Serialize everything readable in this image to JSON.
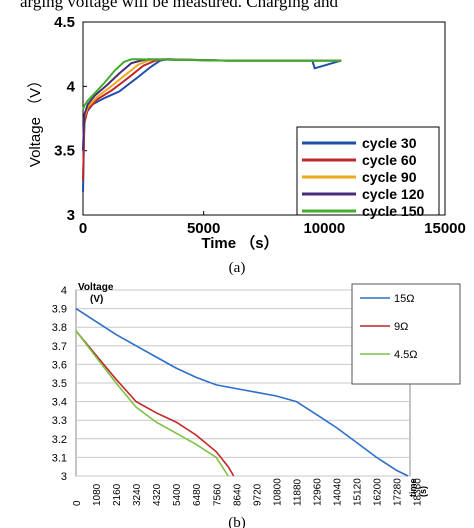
{
  "header_text": "arging voltage will be measured. Charging and",
  "chart_data": [
    {
      "type": "line",
      "caption": "(a)",
      "xlabel": "Time （s）",
      "ylabel": "Voltage （V）",
      "xlim": [
        0,
        15000
      ],
      "ylim": [
        3,
        4.5
      ],
      "x_ticks": [
        "0",
        "5000",
        "10000",
        "15000"
      ],
      "y_ticks": [
        "3",
        "3.5",
        "4",
        "4.5"
      ],
      "legend_position": "bottom-right",
      "series": [
        {
          "name": "cycle 30",
          "color": "#1f4fa8",
          "x": [
            0,
            50,
            150,
            400,
            900,
            1500,
            2200,
            2800,
            3200,
            3500,
            6000,
            9500,
            9600,
            10700
          ],
          "y": [
            3.18,
            3.7,
            3.8,
            3.86,
            3.91,
            3.96,
            4.06,
            4.15,
            4.2,
            4.21,
            4.2,
            4.2,
            4.14,
            4.2
          ]
        },
        {
          "name": "cycle 60",
          "color": "#c0272d",
          "x": [
            0,
            60,
            200,
            600,
            1200,
            1900,
            2500,
            3000,
            3300,
            6000,
            10700
          ],
          "y": [
            3.27,
            3.72,
            3.82,
            3.9,
            3.97,
            4.07,
            4.16,
            4.2,
            4.21,
            4.2,
            4.2
          ]
        },
        {
          "name": "cycle 90",
          "color": "#f0a818",
          "x": [
            0,
            60,
            200,
            600,
            1100,
            1700,
            2300,
            2700,
            3000,
            6000,
            10700
          ],
          "y": [
            3.5,
            3.76,
            3.84,
            3.92,
            3.99,
            4.08,
            4.17,
            4.2,
            4.21,
            4.2,
            4.2
          ]
        },
        {
          "name": "cycle 120",
          "color": "#4b2a7a",
          "x": [
            0,
            60,
            200,
            500,
            1000,
            1500,
            2000,
            2400,
            2700,
            6000,
            10700
          ],
          "y": [
            3.5,
            3.78,
            3.86,
            3.93,
            4.01,
            4.1,
            4.18,
            4.2,
            4.21,
            4.2,
            4.2
          ]
        },
        {
          "name": "cycle 150",
          "color": "#3fae2a",
          "x": [
            0,
            60,
            200,
            500,
            900,
            1300,
            1700,
            2000,
            2300,
            6000,
            10700
          ],
          "y": [
            3.82,
            3.85,
            3.89,
            3.95,
            4.03,
            4.12,
            4.19,
            4.21,
            4.21,
            4.2,
            4.2
          ]
        }
      ]
    },
    {
      "type": "line",
      "caption": "(b)",
      "ylabel_line1": "Voltage",
      "ylabel_line2": "(V)",
      "xlabel_line1": "time",
      "xlabel_line2": "(s)",
      "ylim": [
        3,
        4
      ],
      "xlim": [
        0,
        18000
      ],
      "y_ticks": [
        "4",
        "3.9",
        "3.8",
        "3.7",
        "3.6",
        "3.5",
        "3.4",
        "3.3",
        "3.2",
        "3.1",
        "3"
      ],
      "x_ticks": [
        "0",
        "1080",
        "2160",
        "3240",
        "4320",
        "5400",
        "6480",
        "7560",
        "8640",
        "9720",
        "10800",
        "11880",
        "12960",
        "14040",
        "15120",
        "16200",
        "17280",
        "18360"
      ],
      "legend_position": "top-right",
      "series": [
        {
          "name": "15Ω",
          "color": "#2e6fc8",
          "x": [
            0,
            1080,
            2160,
            3240,
            4320,
            5400,
            6480,
            7560,
            8640,
            9720,
            10800,
            11880,
            12960,
            14040,
            15120,
            16200,
            17280,
            17900
          ],
          "y": [
            3.9,
            3.83,
            3.76,
            3.7,
            3.64,
            3.58,
            3.53,
            3.49,
            3.47,
            3.45,
            3.43,
            3.4,
            3.33,
            3.26,
            3.18,
            3.1,
            3.03,
            3.0
          ]
        },
        {
          "name": "9Ω",
          "color": "#c0272d",
          "x": [
            0,
            1080,
            2160,
            3240,
            4320,
            5400,
            6480,
            7560,
            8200,
            8500
          ],
          "y": [
            3.78,
            3.65,
            3.52,
            3.4,
            3.34,
            3.29,
            3.22,
            3.13,
            3.05,
            3.0
          ]
        },
        {
          "name": "4.5Ω",
          "color": "#7cc242",
          "x": [
            0,
            1080,
            2160,
            3240,
            4320,
            5400,
            6480,
            7560,
            8200
          ],
          "y": [
            3.78,
            3.64,
            3.5,
            3.37,
            3.29,
            3.23,
            3.17,
            3.1,
            3.0
          ]
        }
      ]
    }
  ]
}
